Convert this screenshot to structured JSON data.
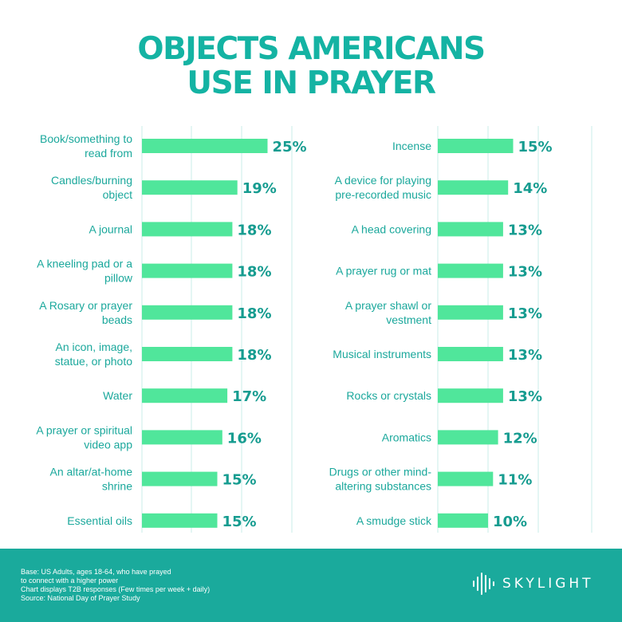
{
  "title": {
    "line1": "OBJECTS AMERICANS",
    "line2": "USE IN PRAYER"
  },
  "chart_data": {
    "type": "bar",
    "title": "OBJECTS AMERICANS USE IN PRAYER",
    "orientation": "horizontal",
    "bar_color": "#50e69b",
    "columns": [
      {
        "categories": [
          [
            "Book/something to",
            "read from"
          ],
          [
            "Candles/burning",
            "object"
          ],
          [
            "A journal"
          ],
          [
            "A kneeling pad or a",
            "pillow"
          ],
          [
            "A Rosary or prayer",
            "beads"
          ],
          [
            "An icon, image,",
            "statue, or photo"
          ],
          [
            "Water"
          ],
          [
            "A prayer or spiritual",
            "video app"
          ],
          [
            "An altar/at-home",
            "shrine"
          ],
          [
            "Essential oils"
          ]
        ],
        "values": [
          25,
          19,
          18,
          18,
          18,
          18,
          17,
          16,
          15,
          15
        ],
        "labels": [
          "25%",
          "19%",
          "18%",
          "18%",
          "18%",
          "18%",
          "17%",
          "16%",
          "15%",
          "15%"
        ]
      },
      {
        "categories": [
          [
            "Incense"
          ],
          [
            "A device for playing",
            "pre-recorded music"
          ],
          [
            "A head covering"
          ],
          [
            "A prayer rug or mat"
          ],
          [
            "A prayer shawl or",
            "vestment"
          ],
          [
            "Musical instruments"
          ],
          [
            "Rocks or crystals"
          ],
          [
            "Aromatics"
          ],
          [
            "Drugs or other mind-",
            "altering substances"
          ],
          [
            "A smudge stick"
          ]
        ],
        "values": [
          15,
          14,
          13,
          13,
          13,
          13,
          13,
          12,
          11,
          10
        ],
        "labels": [
          "15%",
          "14%",
          "13%",
          "13%",
          "13%",
          "13%",
          "13%",
          "12%",
          "11%",
          "10%"
        ]
      }
    ]
  },
  "footer": {
    "lines": [
      "Base: US Adults, ages 18-64, who have prayed",
      "to connect with a higher power",
      "Chart displays T2B responses (Few times per week + daily)",
      "Source: National Day of Prayer Study"
    ],
    "brand": "SKYLIGHT"
  }
}
